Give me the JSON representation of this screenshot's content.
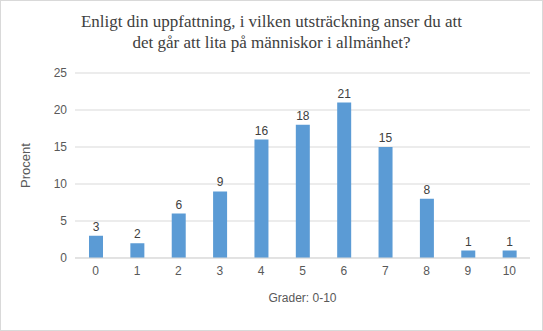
{
  "chart_data": {
    "type": "bar",
    "title": "Enligt din uppfattning, i vilken utsträckning anser du att\ndet går att lita på människor i allmänhet?",
    "x_label": "Grader: 0-10",
    "y_label": "Procent",
    "categories": [
      "0",
      "1",
      "2",
      "3",
      "4",
      "5",
      "6",
      "7",
      "8",
      "9",
      "10"
    ],
    "values": [
      3,
      2,
      6,
      9,
      16,
      18,
      21,
      15,
      8,
      1,
      1
    ],
    "color": "#5b9bd5",
    "ylim": [
      0,
      25
    ],
    "yticks": [
      0,
      5,
      10,
      15,
      20,
      25
    ],
    "grid": true,
    "data_labels": true
  }
}
